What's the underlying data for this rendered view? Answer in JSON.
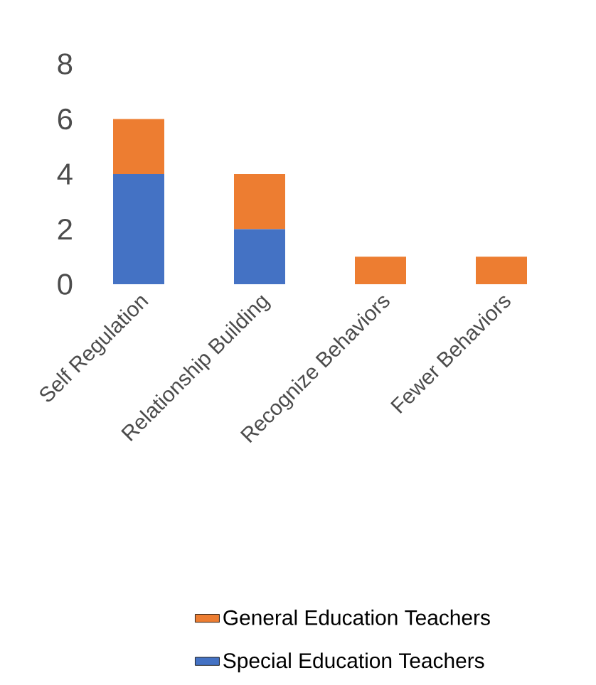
{
  "chart_data": {
    "type": "bar",
    "stacked": true,
    "categories": [
      "Self Regulation",
      "Relationship Building",
      "Recognize Behaviors",
      "Fewer Behaviors"
    ],
    "series": [
      {
        "name": "Special Education Teachers",
        "color": "#4472c4",
        "values": [
          4,
          2,
          0,
          0
        ]
      },
      {
        "name": "General Education Teachers",
        "color": "#ed7d31",
        "values": [
          2,
          2,
          1,
          1
        ]
      }
    ],
    "ylim": [
      0,
      8
    ],
    "yticks": [
      0,
      2,
      4,
      6,
      8
    ],
    "grid": false,
    "legend": "bottom"
  }
}
